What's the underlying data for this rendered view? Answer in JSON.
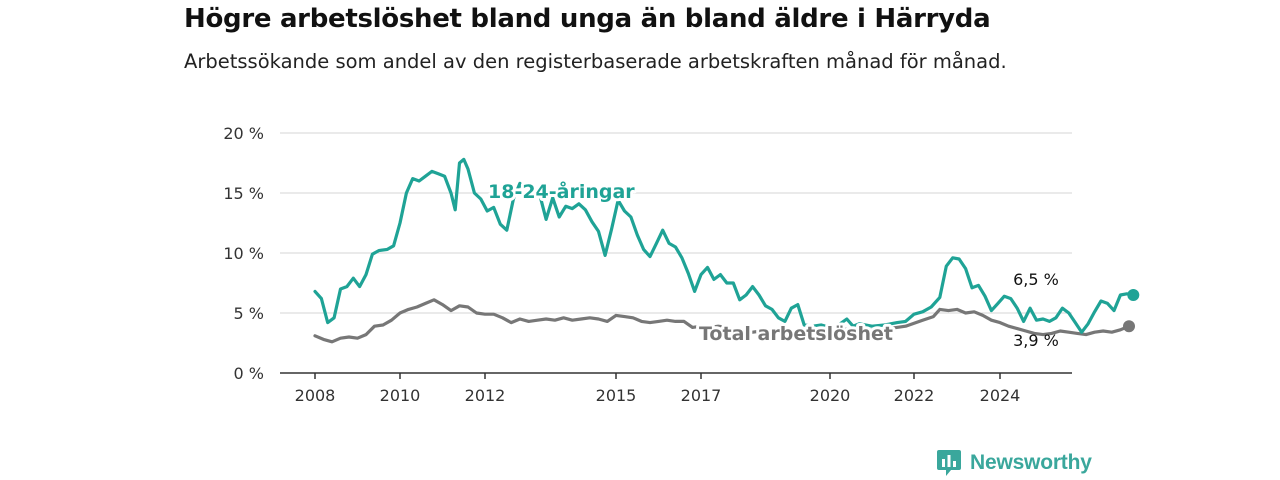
{
  "title": "Högre arbetslöshet bland unga än bland äldre i Härryda",
  "subtitle": "Arbetssökande som andel av den registerbaserade arbetskraften månad för månad.",
  "brand": {
    "name": "Newsworthy"
  },
  "colors": {
    "youth": "#1fa396",
    "total": "#777777",
    "grid": "#d6d6d6",
    "axis": "#333333"
  },
  "chart_data": {
    "type": "line",
    "title": "Högre arbetslöshet bland unga än bland äldre i Härryda",
    "subtitle": "Arbetssökande som andel av den registerbaserade arbetskraften månad för månad.",
    "xlabel": "",
    "ylabel": "",
    "x_range": [
      2007.6,
      2026.3
    ],
    "ylim": [
      0,
      20
    ],
    "y_ticks": [
      0,
      5,
      10,
      15,
      20
    ],
    "y_tick_labels": [
      "0 %",
      "5 %",
      "10 %",
      "15 %",
      "20 %"
    ],
    "x_ticks": [
      2008,
      2010,
      2012,
      2015,
      2017,
      2020,
      2022,
      2024
    ],
    "x_tick_labels": [
      "2008",
      "2010",
      "2012",
      "2015",
      "2017",
      "2020",
      "2022",
      "2024"
    ],
    "grid": true,
    "series": [
      {
        "name": "18-24-åringar",
        "color": "#1fa396",
        "end_label": "6,5 %",
        "points": [
          [
            2008.0,
            6.8
          ],
          [
            2008.15,
            6.2
          ],
          [
            2008.3,
            4.2
          ],
          [
            2008.45,
            4.6
          ],
          [
            2008.6,
            7.0
          ],
          [
            2008.75,
            7.2
          ],
          [
            2008.9,
            7.9
          ],
          [
            2009.05,
            7.2
          ],
          [
            2009.2,
            8.2
          ],
          [
            2009.35,
            9.9
          ],
          [
            2009.5,
            10.2
          ],
          [
            2009.7,
            10.3
          ],
          [
            2009.85,
            10.6
          ],
          [
            2010.0,
            12.5
          ],
          [
            2010.15,
            15.0
          ],
          [
            2010.3,
            16.2
          ],
          [
            2010.45,
            16.0
          ],
          [
            2010.6,
            16.4
          ],
          [
            2010.75,
            16.8
          ],
          [
            2010.9,
            16.6
          ],
          [
            2011.05,
            16.4
          ],
          [
            2011.2,
            15.0
          ],
          [
            2011.3,
            13.6
          ],
          [
            2011.4,
            17.5
          ],
          [
            2011.5,
            17.8
          ],
          [
            2011.6,
            17.0
          ],
          [
            2011.75,
            15.0
          ],
          [
            2011.9,
            14.5
          ],
          [
            2012.05,
            13.5
          ],
          [
            2012.2,
            13.8
          ],
          [
            2012.35,
            12.4
          ],
          [
            2012.5,
            11.9
          ],
          [
            2012.65,
            14.5
          ],
          [
            2012.8,
            15.8
          ],
          [
            2012.95,
            14.8
          ],
          [
            2013.1,
            15.1
          ],
          [
            2013.25,
            14.9
          ],
          [
            2013.4,
            12.8
          ],
          [
            2013.55,
            14.6
          ],
          [
            2013.7,
            13.0
          ],
          [
            2013.85,
            13.9
          ],
          [
            2014.0,
            13.7
          ],
          [
            2014.15,
            14.1
          ],
          [
            2014.3,
            13.6
          ],
          [
            2014.45,
            12.6
          ],
          [
            2014.6,
            11.8
          ],
          [
            2014.75,
            9.8
          ],
          [
            2014.9,
            12.0
          ],
          [
            2015.05,
            14.4
          ],
          [
            2015.2,
            13.5
          ],
          [
            2015.35,
            13.0
          ],
          [
            2015.5,
            11.5
          ],
          [
            2015.65,
            10.3
          ],
          [
            2015.8,
            9.7
          ],
          [
            2015.95,
            10.8
          ],
          [
            2016.1,
            11.9
          ],
          [
            2016.25,
            10.8
          ],
          [
            2016.4,
            10.5
          ],
          [
            2016.55,
            9.6
          ],
          [
            2016.7,
            8.3
          ],
          [
            2016.85,
            6.8
          ],
          [
            2017.0,
            8.2
          ],
          [
            2017.15,
            8.8
          ],
          [
            2017.3,
            7.8
          ],
          [
            2017.45,
            8.2
          ],
          [
            2017.6,
            7.5
          ],
          [
            2017.75,
            7.5
          ],
          [
            2017.9,
            6.1
          ],
          [
            2018.05,
            6.5
          ],
          [
            2018.2,
            7.2
          ],
          [
            2018.35,
            6.5
          ],
          [
            2018.5,
            5.6
          ],
          [
            2018.65,
            5.3
          ],
          [
            2018.8,
            4.6
          ],
          [
            2018.95,
            4.3
          ],
          [
            2019.1,
            5.4
          ],
          [
            2019.25,
            5.7
          ],
          [
            2019.4,
            4.0
          ],
          [
            2019.6,
            3.9
          ],
          [
            2019.8,
            4.0
          ],
          [
            2020.0,
            3.8
          ],
          [
            2020.2,
            4.0
          ],
          [
            2020.4,
            4.5
          ],
          [
            2020.55,
            3.9
          ],
          [
            2020.7,
            4.1
          ],
          [
            2021.0,
            3.9
          ],
          [
            2021.3,
            4.0
          ],
          [
            2021.6,
            4.2
          ],
          [
            2021.8,
            4.3
          ],
          [
            2022.0,
            4.9
          ],
          [
            2022.2,
            5.1
          ],
          [
            2022.4,
            5.5
          ],
          [
            2022.6,
            6.3
          ],
          [
            2022.75,
            8.9
          ],
          [
            2022.9,
            9.6
          ],
          [
            2023.05,
            9.5
          ],
          [
            2023.2,
            8.7
          ],
          [
            2023.35,
            7.1
          ],
          [
            2023.5,
            7.3
          ],
          [
            2023.65,
            6.4
          ],
          [
            2023.8,
            5.2
          ],
          [
            2023.95,
            5.8
          ],
          [
            2024.1,
            6.4
          ],
          [
            2024.25,
            6.2
          ],
          [
            2024.4,
            5.4
          ],
          [
            2024.55,
            4.3
          ],
          [
            2024.7,
            5.4
          ],
          [
            2024.85,
            4.4
          ],
          [
            2025.0,
            4.5
          ],
          [
            2025.15,
            4.3
          ],
          [
            2025.3,
            4.6
          ],
          [
            2025.45,
            5.4
          ],
          [
            2025.6,
            5.0
          ],
          [
            2025.75,
            4.2
          ],
          [
            2025.9,
            3.4
          ],
          [
            2026.05,
            4.1
          ],
          [
            2026.2,
            5.1
          ],
          [
            2026.35,
            6.0
          ],
          [
            2026.5,
            5.8
          ],
          [
            2026.65,
            5.2
          ],
          [
            2026.8,
            6.5
          ],
          [
            2026.95,
            6.6
          ],
          [
            2027.1,
            6.5
          ]
        ]
      },
      {
        "name": "Total arbetslöshet",
        "color": "#777777",
        "end_label": "3,9 %",
        "points": [
          [
            2008.0,
            3.1
          ],
          [
            2008.2,
            2.8
          ],
          [
            2008.4,
            2.6
          ],
          [
            2008.6,
            2.9
          ],
          [
            2008.8,
            3.0
          ],
          [
            2009.0,
            2.9
          ],
          [
            2009.2,
            3.2
          ],
          [
            2009.4,
            3.9
          ],
          [
            2009.6,
            4.0
          ],
          [
            2009.8,
            4.4
          ],
          [
            2010.0,
            5.0
          ],
          [
            2010.2,
            5.3
          ],
          [
            2010.4,
            5.5
          ],
          [
            2010.6,
            5.8
          ],
          [
            2010.8,
            6.1
          ],
          [
            2011.0,
            5.7
          ],
          [
            2011.2,
            5.2
          ],
          [
            2011.4,
            5.6
          ],
          [
            2011.6,
            5.5
          ],
          [
            2011.8,
            5.0
          ],
          [
            2012.0,
            4.9
          ],
          [
            2012.2,
            4.9
          ],
          [
            2012.4,
            4.6
          ],
          [
            2012.6,
            4.2
          ],
          [
            2012.8,
            4.5
          ],
          [
            2013.0,
            4.3
          ],
          [
            2013.2,
            4.4
          ],
          [
            2013.4,
            4.5
          ],
          [
            2013.6,
            4.4
          ],
          [
            2013.8,
            4.6
          ],
          [
            2014.0,
            4.4
          ],
          [
            2014.2,
            4.5
          ],
          [
            2014.4,
            4.6
          ],
          [
            2014.6,
            4.5
          ],
          [
            2014.8,
            4.3
          ],
          [
            2015.0,
            4.8
          ],
          [
            2015.2,
            4.7
          ],
          [
            2015.4,
            4.6
          ],
          [
            2015.6,
            4.3
          ],
          [
            2015.8,
            4.2
          ],
          [
            2016.0,
            4.3
          ],
          [
            2016.2,
            4.4
          ],
          [
            2016.4,
            4.3
          ],
          [
            2016.6,
            4.3
          ],
          [
            2016.8,
            3.8
          ],
          [
            2017.0,
            3.9
          ],
          [
            2017.2,
            3.8
          ],
          [
            2017.4,
            3.9
          ],
          [
            2017.6,
            3.8
          ],
          [
            2017.8,
            3.6
          ],
          [
            2018.0,
            3.3
          ],
          [
            2018.2,
            3.4
          ],
          [
            2018.4,
            3.5
          ],
          [
            2018.6,
            3.6
          ],
          [
            2018.8,
            3.6
          ],
          [
            2019.0,
            3.5
          ],
          [
            2019.4,
            3.5
          ],
          [
            2019.8,
            3.6
          ],
          [
            2020.2,
            3.7
          ],
          [
            2020.6,
            3.6
          ],
          [
            2021.0,
            3.6
          ],
          [
            2021.4,
            3.7
          ],
          [
            2021.8,
            3.9
          ],
          [
            2022.2,
            4.4
          ],
          [
            2022.45,
            4.7
          ],
          [
            2022.6,
            5.3
          ],
          [
            2022.8,
            5.2
          ],
          [
            2023.0,
            5.3
          ],
          [
            2023.2,
            5.0
          ],
          [
            2023.4,
            5.1
          ],
          [
            2023.6,
            4.8
          ],
          [
            2023.8,
            4.4
          ],
          [
            2024.0,
            4.2
          ],
          [
            2024.2,
            3.9
          ],
          [
            2024.4,
            3.7
          ],
          [
            2024.6,
            3.5
          ],
          [
            2024.8,
            3.3
          ],
          [
            2025.0,
            3.2
          ],
          [
            2025.2,
            3.3
          ],
          [
            2025.4,
            3.5
          ],
          [
            2025.6,
            3.4
          ],
          [
            2025.8,
            3.3
          ],
          [
            2026.0,
            3.2
          ],
          [
            2026.2,
            3.4
          ],
          [
            2026.4,
            3.5
          ],
          [
            2026.6,
            3.4
          ],
          [
            2026.8,
            3.6
          ],
          [
            2027.0,
            3.9
          ]
        ]
      }
    ]
  }
}
